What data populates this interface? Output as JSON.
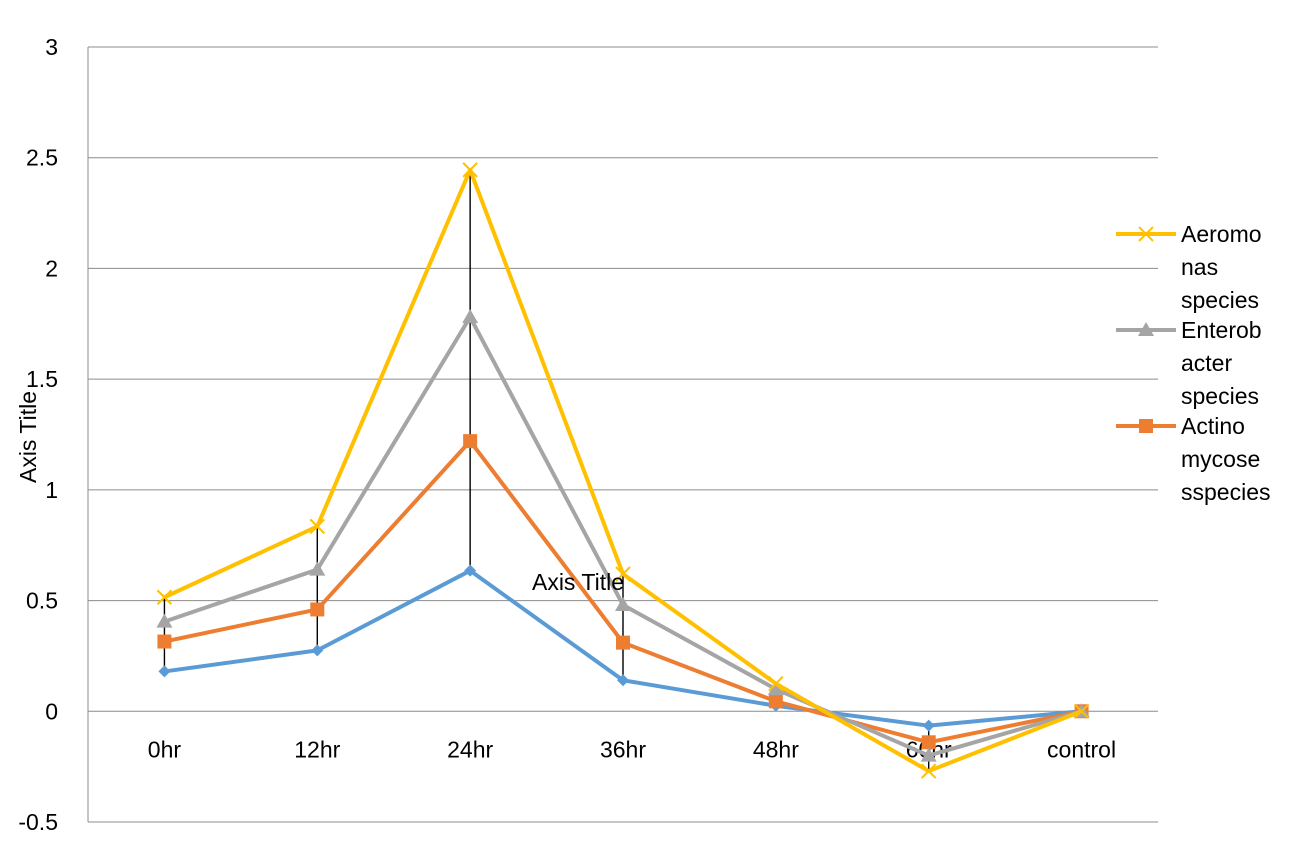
{
  "chart_data": {
    "type": "line",
    "categories": [
      "0hr",
      "12hr",
      "24hr",
      "36hr",
      "48hr",
      "60hr",
      "control"
    ],
    "ylim": [
      -0.5,
      3
    ],
    "yticks": [
      -0.5,
      0,
      0.5,
      1,
      1.5,
      2,
      2.5,
      3
    ],
    "ytick_labels": [
      "-0.5",
      "0",
      "0.5",
      "1",
      "1.5",
      "2",
      "2.5",
      "3"
    ],
    "grid": true,
    "xlabel": "Axis Title",
    "ylabel": "Axis Title",
    "legend_position": "right",
    "series": [
      {
        "legend_lines": [],
        "color": "#5B9BD5",
        "marker": "diamond",
        "values": [
          0.18,
          0.275,
          0.635,
          0.14,
          0.025,
          -0.065,
          0
        ]
      },
      {
        "legend_lines": [
          "Actino",
          "mycose",
          "sspecies"
        ],
        "color": "#ED7D31",
        "marker": "square",
        "values": [
          0.315,
          0.46,
          1.22,
          0.31,
          0.045,
          -0.14,
          0
        ]
      },
      {
        "legend_lines": [
          "Enterob",
          "acter",
          "species"
        ],
        "color": "#A5A5A5",
        "marker": "triangle",
        "values": [
          0.405,
          0.64,
          1.78,
          0.48,
          0.1,
          -0.2,
          0
        ]
      },
      {
        "legend_lines": [
          "Aeromo",
          "nas",
          "species"
        ],
        "color": "#FFC000",
        "marker": "x",
        "values": [
          0.515,
          0.835,
          2.445,
          0.62,
          0.125,
          -0.27,
          0
        ]
      }
    ],
    "error_bars": {
      "color": "#000000",
      "from_series": 0,
      "to_series": 3
    }
  }
}
